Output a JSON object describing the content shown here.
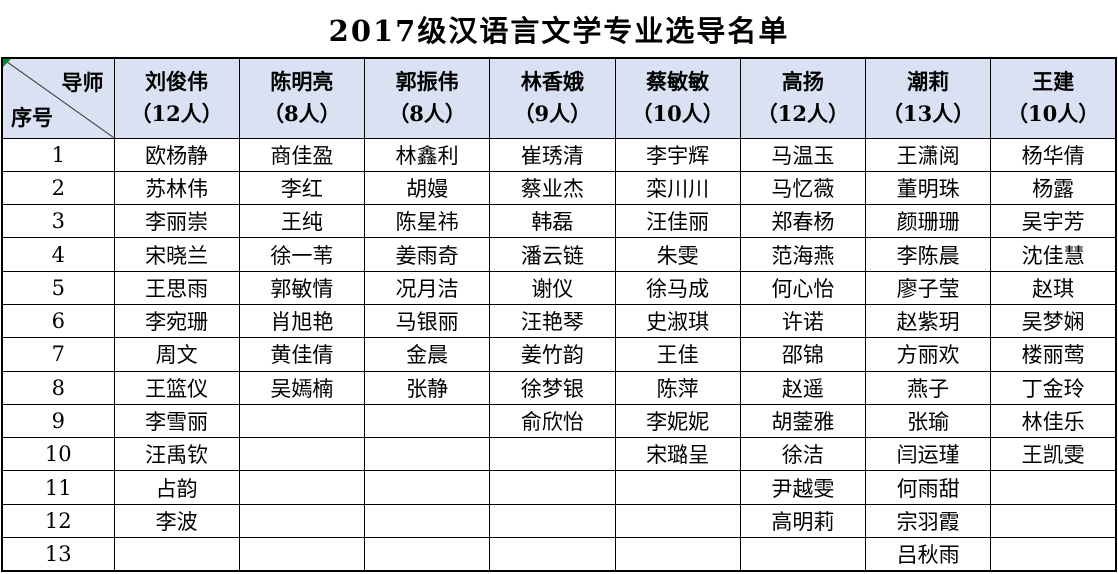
{
  "title": "2017级汉语言文学专业选导名单",
  "colors": {
    "header_bg": "#D9E1F2",
    "border": "#000000",
    "error_indicator_green": "#0a8a2e"
  },
  "corner": {
    "top_label": "导师",
    "bottom_label": "序号"
  },
  "table": {
    "mentors": [
      {
        "name": "刘俊伟",
        "count_label": "（12人）"
      },
      {
        "name": "陈明亮",
        "count_label": "（8人）"
      },
      {
        "name": "郭振伟",
        "count_label": "（8人）"
      },
      {
        "name": "林香娥",
        "count_label": "（9人）"
      },
      {
        "name": "蔡敏敏",
        "count_label": "（10人）"
      },
      {
        "name": "高扬",
        "count_label": "（12人）"
      },
      {
        "name": "潮莉",
        "count_label": "（13人）"
      },
      {
        "name": "王建",
        "count_label": "（10人）"
      }
    ],
    "row_numbers": [
      "1",
      "2",
      "3",
      "4",
      "5",
      "6",
      "7",
      "8",
      "9",
      "10",
      "11",
      "12",
      "13"
    ],
    "rows": [
      [
        "欧杨静",
        "商佳盈",
        "林鑫利",
        "崔琇清",
        "李宇辉",
        "马温玉",
        "王潇阅",
        "杨华倩"
      ],
      [
        "苏林伟",
        "李红",
        "胡嫚",
        "蔡业杰",
        "栾川川",
        "马忆薇",
        "董明珠",
        "杨露"
      ],
      [
        "李丽崇",
        "王纯",
        "陈星祎",
        "韩磊",
        "汪佳丽",
        "郑春杨",
        "颜珊珊",
        "吴宇芳"
      ],
      [
        "宋晓兰",
        "徐一苇",
        "姜雨奇",
        "潘云链",
        "朱雯",
        "范海燕",
        "李陈晨",
        "沈佳慧"
      ],
      [
        "王思雨",
        "郭敏情",
        "况月洁",
        "谢仪",
        "徐马成",
        "何心怡",
        "廖子莹",
        "赵琪"
      ],
      [
        "李宛珊",
        "肖旭艳",
        "马银丽",
        "汪艳琴",
        "史淑琪",
        "许诺",
        "赵紫玥",
        "吴梦娴"
      ],
      [
        "周文",
        "黄佳倩",
        "金晨",
        "姜竹韵",
        "王佳",
        "邵锦",
        "方丽欢",
        "楼丽莺"
      ],
      [
        "王篮仪",
        "吴嫣楠",
        "张静",
        "徐梦银",
        "陈萍",
        "赵遥",
        "燕子",
        "丁金玲"
      ],
      [
        "李雪丽",
        "",
        "",
        "俞欣怡",
        "李妮妮",
        "胡蓥雅",
        "张瑜",
        "林佳乐"
      ],
      [
        "汪禹钦",
        "",
        "",
        "",
        "宋璐呈",
        "徐洁",
        "闫运瑾",
        "王凯雯"
      ],
      [
        "占韵",
        "",
        "",
        "",
        "",
        "尹越雯",
        "何雨甜",
        ""
      ],
      [
        "李波",
        "",
        "",
        "",
        "",
        "高明莉",
        "宗羽霞",
        ""
      ],
      [
        "",
        "",
        "",
        "",
        "",
        "",
        "吕秋雨",
        ""
      ]
    ]
  }
}
